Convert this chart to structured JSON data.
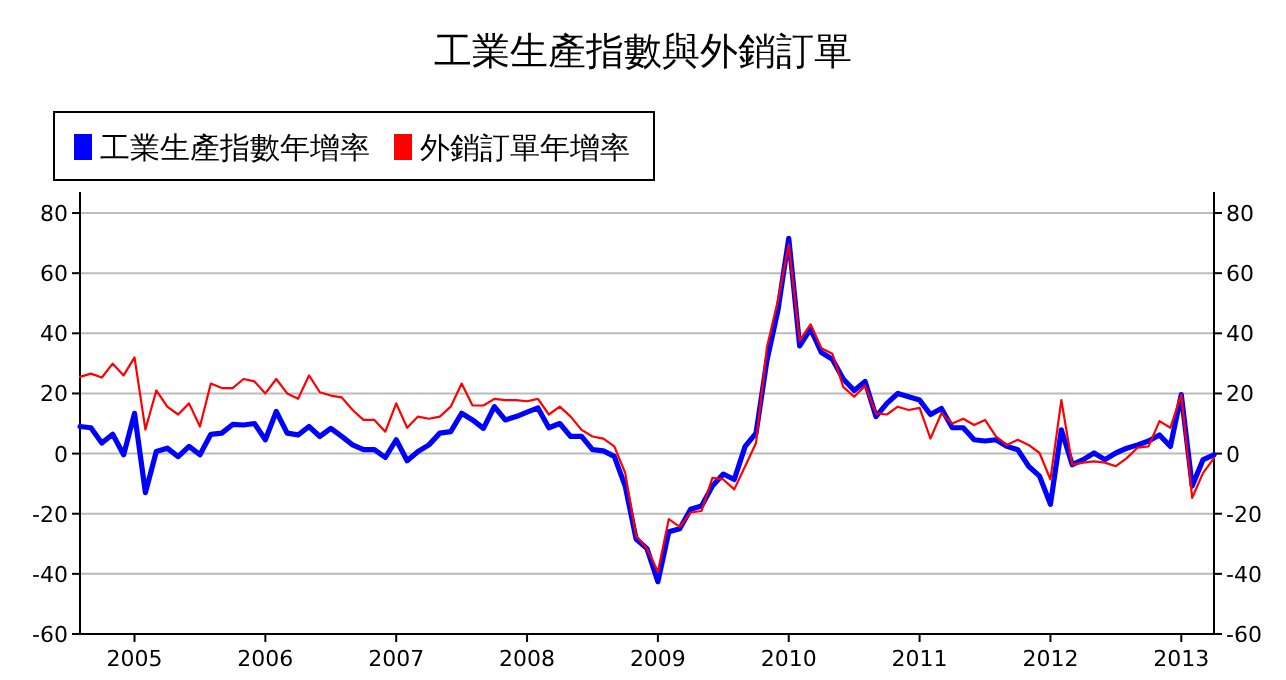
{
  "chart_data": {
    "type": "line",
    "title": "工業生產指數與外銷訂單",
    "legend": "top left",
    "grid": "y",
    "marker": "none",
    "line_style": "solid",
    "x": [
      "2004-08",
      "2004-09",
      "2004-10",
      "2004-11",
      "2004-12",
      "2005-01",
      "2005-02",
      "2005-03",
      "2005-04",
      "2005-05",
      "2005-06",
      "2005-07",
      "2005-08",
      "2005-09",
      "2005-10",
      "2005-11",
      "2005-12",
      "2006-01",
      "2006-02",
      "2006-03",
      "2006-04",
      "2006-05",
      "2006-06",
      "2006-07",
      "2006-08",
      "2006-09",
      "2006-10",
      "2006-11",
      "2006-12",
      "2007-01",
      "2007-02",
      "2007-03",
      "2007-04",
      "2007-05",
      "2007-06",
      "2007-07",
      "2007-08",
      "2007-09",
      "2007-10",
      "2007-11",
      "2007-12",
      "2008-01",
      "2008-02",
      "2008-03",
      "2008-04",
      "2008-05",
      "2008-06",
      "2008-07",
      "2008-08",
      "2008-09",
      "2008-10",
      "2008-11",
      "2008-12",
      "2009-01",
      "2009-02",
      "2009-03",
      "2009-04",
      "2009-05",
      "2009-06",
      "2009-07",
      "2009-08",
      "2009-09",
      "2009-10",
      "2009-11",
      "2009-12",
      "2010-01",
      "2010-02",
      "2010-03",
      "2010-04",
      "2010-05",
      "2010-06",
      "2010-07",
      "2010-08",
      "2010-09",
      "2010-10",
      "2010-11",
      "2010-12",
      "2011-01",
      "2011-02",
      "2011-03",
      "2011-04",
      "2011-05",
      "2011-06",
      "2011-07",
      "2011-08",
      "2011-09",
      "2011-10",
      "2011-11",
      "2011-12",
      "2012-01",
      "2012-02",
      "2012-03",
      "2012-04",
      "2012-05",
      "2012-06",
      "2012-07",
      "2012-08",
      "2012-09",
      "2012-10",
      "2012-11",
      "2012-12",
      "2013-01",
      "2013-02",
      "2013-03",
      "2013-04"
    ],
    "series": [
      {
        "name": "工業生產指數年增率",
        "color": "#0000ff",
        "values": [
          9,
          8.6,
          3.5,
          6.4,
          -0.4,
          13.4,
          -13,
          0.7,
          1.8,
          -1,
          2.4,
          -0.4,
          6.4,
          6.8,
          9.7,
          9.5,
          10,
          4.6,
          14,
          6.8,
          6.2,
          9,
          5.7,
          8.4,
          5.7,
          2.9,
          1.3,
          1.3,
          -1.3,
          4.6,
          -2.4,
          0.7,
          2.9,
          6.8,
          7.3,
          13.4,
          11.2,
          8.4,
          15.6,
          11.2,
          12.3,
          13.8,
          15.2,
          8.6,
          10,
          5.7,
          5.7,
          1.3,
          0.9,
          -0.9,
          -10.8,
          -28.4,
          -31.6,
          -42.6,
          -26,
          -25,
          -18.5,
          -17.4,
          -10.8,
          -6.8,
          -8.6,
          2.4,
          6.8,
          31,
          47.5,
          71.6,
          35.8,
          41.5,
          33.6,
          31.4,
          24.8,
          21,
          24,
          12.3,
          16.7,
          20,
          18.9,
          17.8,
          13,
          15,
          8.6,
          8.6,
          4.6,
          4.2,
          4.6,
          2.4,
          1.3,
          -4.2,
          -7.5,
          -16.9,
          7.9,
          -3.7,
          -2,
          0.2,
          -2,
          0.2,
          1.8,
          2.9,
          4.2,
          6.2,
          2.4,
          19.6,
          -10.8,
          -2,
          -0.4
        ]
      },
      {
        "name": "外銷訂單年增率",
        "color": "#ff0000",
        "values": [
          25.5,
          26.6,
          25.3,
          29.9,
          26,
          32,
          8,
          21,
          15.6,
          13,
          16.7,
          9,
          23.3,
          21.8,
          21.8,
          24.8,
          24,
          20,
          24.8,
          20,
          18.2,
          26,
          20.4,
          19.3,
          18.7,
          14.5,
          11.2,
          11.2,
          7.3,
          16.7,
          8.6,
          12.3,
          11.6,
          12.3,
          15.6,
          23.3,
          16,
          16,
          18.2,
          17.8,
          17.8,
          17.4,
          18.2,
          13,
          15.6,
          12.3,
          7.9,
          5.7,
          5,
          2.4,
          -6.4,
          -27.3,
          -31.6,
          -39.3,
          -21.8,
          -24.4,
          -19.6,
          -19.1,
          -8.1,
          -8.6,
          -11.9,
          -4.2,
          3.5,
          35.4,
          50.8,
          69.5,
          37.6,
          43,
          35,
          33.2,
          22.2,
          18.9,
          22.6,
          13.4,
          13,
          15.6,
          14.5,
          15.2,
          5,
          13.4,
          10,
          11.6,
          9.5,
          11.2,
          5.7,
          2.9,
          4.6,
          2.9,
          0.2,
          -8.6,
          17.8,
          -3.7,
          -3,
          -2.6,
          -3,
          -4.2,
          -1.5,
          2,
          2.4,
          10.8,
          8.6,
          19.6,
          -14.7,
          -6.4,
          -1.5
        ]
      }
    ],
    "xlim": [
      "2004-08",
      "2013-04"
    ],
    "xticks": [
      {
        "value": "2005",
        "label": "2005"
      },
      {
        "value": "2006",
        "label": "2006"
      },
      {
        "value": "2007",
        "label": "2007"
      },
      {
        "value": "2008",
        "label": "2008"
      },
      {
        "value": "2009",
        "label": "2009"
      },
      {
        "value": "2010",
        "label": "2010"
      },
      {
        "value": "2011",
        "label": "2011"
      },
      {
        "value": "2012",
        "label": "2012"
      },
      {
        "value": "2013",
        "label": "2013"
      }
    ],
    "ylim": [
      -60,
      87
    ],
    "yticks": [
      -60,
      -40,
      -20,
      0,
      20,
      40,
      60,
      80
    ],
    "y2lim": [
      -60,
      87
    ],
    "y2ticks": [
      -60,
      -40,
      -20,
      0,
      20,
      40,
      60,
      80
    ]
  }
}
